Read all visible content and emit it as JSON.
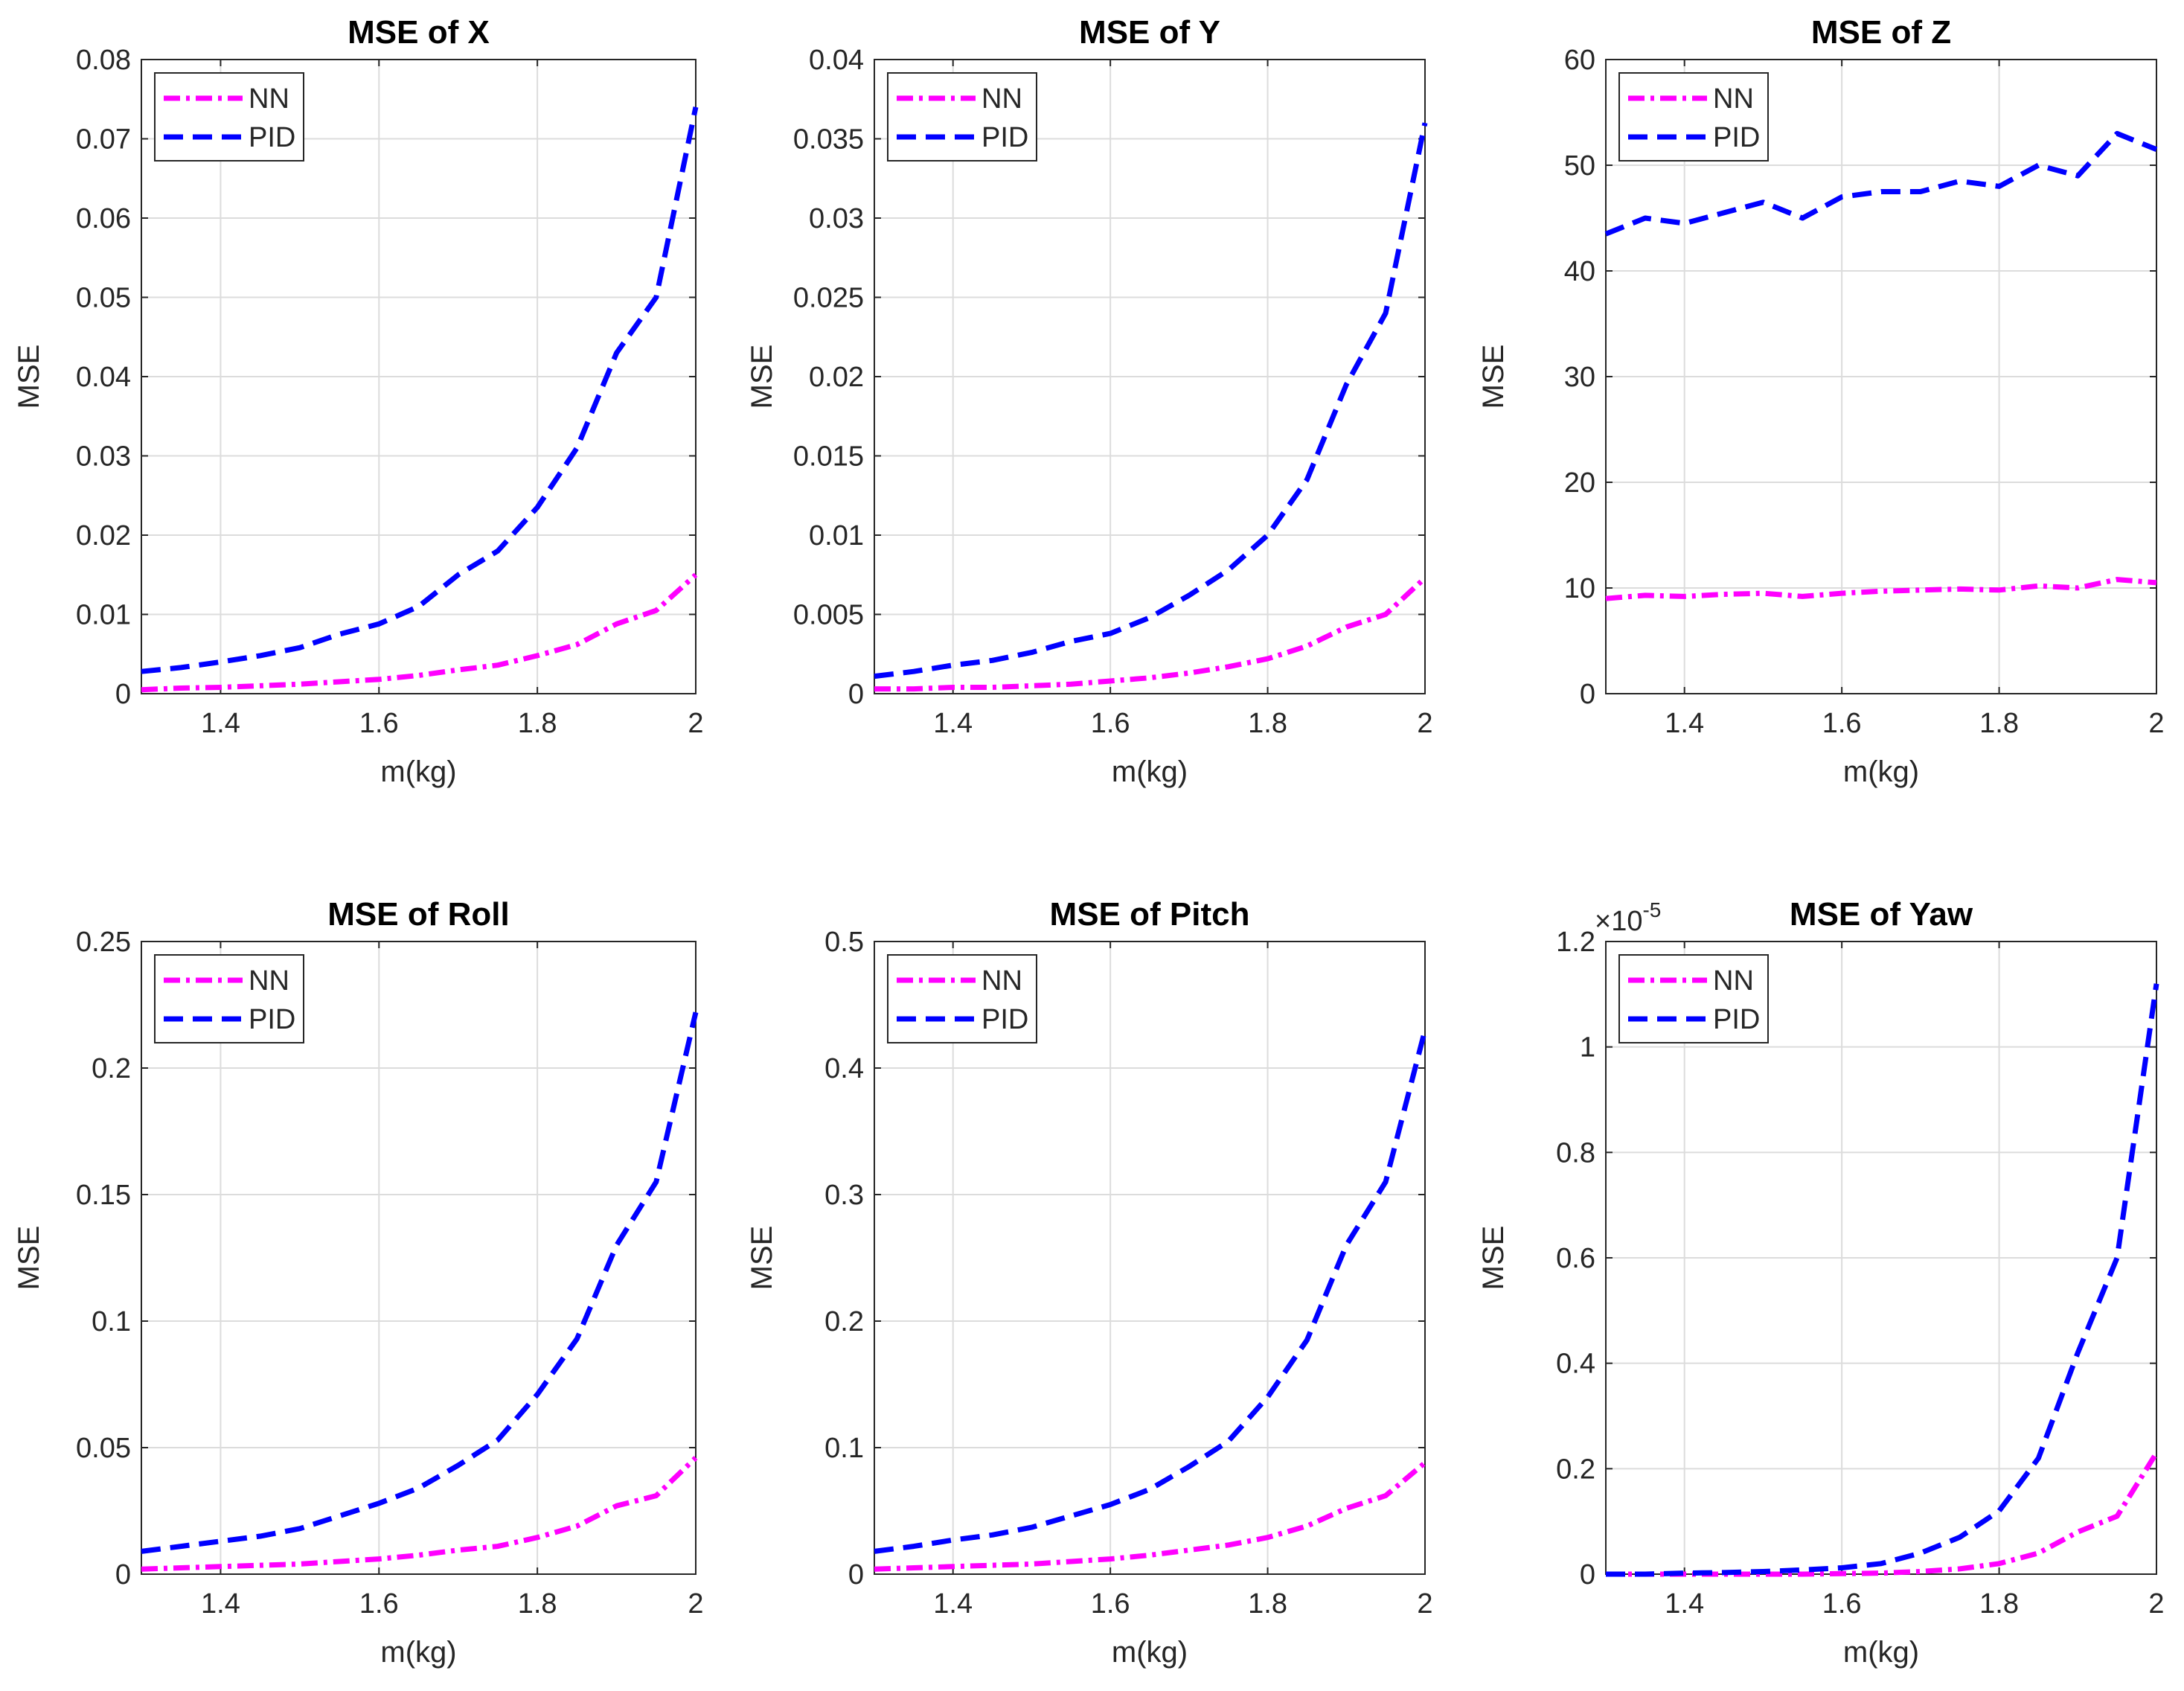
{
  "chart_data": [
    {
      "type": "line",
      "title": "MSE of X",
      "xlabel": "m(kg)",
      "ylabel": "MSE",
      "xlim": [
        1.3,
        2.0
      ],
      "ylim": [
        0,
        0.08
      ],
      "xticks": [
        "1.4",
        "1.6",
        "1.8",
        "2"
      ],
      "yticks": [
        "0",
        "0.01",
        "0.02",
        "0.03",
        "0.04",
        "0.05",
        "0.06",
        "0.07",
        "0.08"
      ],
      "exponent_label": "",
      "legend": [
        "NN",
        "PID"
      ],
      "x": [
        1.3,
        1.35,
        1.4,
        1.45,
        1.5,
        1.55,
        1.6,
        1.65,
        1.7,
        1.75,
        1.8,
        1.85,
        1.9,
        1.95,
        2.0
      ],
      "series": [
        {
          "name": "NN",
          "color": "#ff00ff",
          "values": [
            0.0005,
            0.0007,
            0.0008,
            0.001,
            0.0012,
            0.0015,
            0.0018,
            0.0023,
            0.003,
            0.0036,
            0.0048,
            0.0062,
            0.0088,
            0.0105,
            0.015
          ]
        },
        {
          "name": "PID",
          "color": "#0000ff",
          "values": [
            0.0028,
            0.0033,
            0.004,
            0.0048,
            0.0058,
            0.0075,
            0.0088,
            0.011,
            0.015,
            0.018,
            0.0235,
            0.031,
            0.043,
            0.05,
            0.074
          ]
        }
      ]
    },
    {
      "type": "line",
      "title": "MSE of Y",
      "xlabel": "m(kg)",
      "ylabel": "MSE",
      "xlim": [
        1.3,
        2.0
      ],
      "ylim": [
        0,
        0.04
      ],
      "xticks": [
        "1.4",
        "1.6",
        "1.8",
        "2"
      ],
      "yticks": [
        "0",
        "0.005",
        "0.01",
        "0.015",
        "0.02",
        "0.025",
        "0.03",
        "0.035",
        "0.04"
      ],
      "exponent_label": "",
      "legend": [
        "NN",
        "PID"
      ],
      "x": [
        1.3,
        1.35,
        1.4,
        1.45,
        1.5,
        1.55,
        1.6,
        1.65,
        1.7,
        1.75,
        1.8,
        1.85,
        1.9,
        1.95,
        2.0
      ],
      "series": [
        {
          "name": "NN",
          "color": "#ff00ff",
          "values": [
            0.0003,
            0.0003,
            0.0004,
            0.0004,
            0.0005,
            0.0006,
            0.0008,
            0.001,
            0.0013,
            0.0017,
            0.0022,
            0.003,
            0.0042,
            0.005,
            0.0073
          ]
        },
        {
          "name": "PID",
          "color": "#0000ff",
          "values": [
            0.0011,
            0.0014,
            0.0018,
            0.0021,
            0.0026,
            0.0033,
            0.0038,
            0.0048,
            0.0062,
            0.0078,
            0.01,
            0.0135,
            0.0195,
            0.024,
            0.036
          ]
        }
      ]
    },
    {
      "type": "line",
      "title": "MSE of Z",
      "xlabel": "m(kg)",
      "ylabel": "MSE",
      "xlim": [
        1.3,
        2.0
      ],
      "ylim": [
        0,
        60
      ],
      "xticks": [
        "1.4",
        "1.6",
        "1.8",
        "2"
      ],
      "yticks": [
        "0",
        "10",
        "20",
        "30",
        "40",
        "50",
        "60"
      ],
      "exponent_label": "",
      "legend": [
        "NN",
        "PID"
      ],
      "x": [
        1.3,
        1.35,
        1.4,
        1.45,
        1.5,
        1.55,
        1.6,
        1.65,
        1.7,
        1.75,
        1.8,
        1.85,
        1.9,
        1.95,
        2.0
      ],
      "series": [
        {
          "name": "NN",
          "color": "#ff00ff",
          "values": [
            9.0,
            9.3,
            9.2,
            9.4,
            9.5,
            9.2,
            9.5,
            9.7,
            9.8,
            9.9,
            9.8,
            10.2,
            10.0,
            10.8,
            10.5
          ]
        },
        {
          "name": "PID",
          "color": "#0000ff",
          "values": [
            43.5,
            45.0,
            44.5,
            45.5,
            46.5,
            45.0,
            47.0,
            47.5,
            47.5,
            48.5,
            48.0,
            50.0,
            49.0,
            53.0,
            51.5
          ]
        }
      ]
    },
    {
      "type": "line",
      "title": "MSE of Roll",
      "xlabel": "m(kg)",
      "ylabel": "MSE",
      "xlim": [
        1.3,
        2.0
      ],
      "ylim": [
        0,
        0.25
      ],
      "xticks": [
        "1.4",
        "1.6",
        "1.8",
        "2"
      ],
      "yticks": [
        "0",
        "0.05",
        "0.1",
        "0.15",
        "0.2",
        "0.25"
      ],
      "exponent_label": "",
      "legend": [
        "NN",
        "PID"
      ],
      "x": [
        1.3,
        1.35,
        1.4,
        1.45,
        1.5,
        1.55,
        1.6,
        1.65,
        1.7,
        1.75,
        1.8,
        1.85,
        1.9,
        1.95,
        2.0
      ],
      "series": [
        {
          "name": "NN",
          "color": "#ff00ff",
          "values": [
            0.002,
            0.0025,
            0.003,
            0.0035,
            0.004,
            0.005,
            0.006,
            0.0075,
            0.0095,
            0.011,
            0.0145,
            0.019,
            0.027,
            0.031,
            0.046
          ]
        },
        {
          "name": "PID",
          "color": "#0000ff",
          "values": [
            0.009,
            0.011,
            0.013,
            0.015,
            0.018,
            0.023,
            0.028,
            0.034,
            0.043,
            0.053,
            0.071,
            0.093,
            0.13,
            0.155,
            0.222
          ]
        }
      ]
    },
    {
      "type": "line",
      "title": "MSE of Pitch",
      "xlabel": "m(kg)",
      "ylabel": "MSE",
      "xlim": [
        1.3,
        2.0
      ],
      "ylim": [
        0,
        0.5
      ],
      "xticks": [
        "1.4",
        "1.6",
        "1.8",
        "2"
      ],
      "yticks": [
        "0",
        "0.1",
        "0.2",
        "0.3",
        "0.4",
        "0.5"
      ],
      "exponent_label": "",
      "legend": [
        "NN",
        "PID"
      ],
      "x": [
        1.3,
        1.35,
        1.4,
        1.45,
        1.5,
        1.55,
        1.6,
        1.65,
        1.7,
        1.75,
        1.8,
        1.85,
        1.9,
        1.95,
        2.0
      ],
      "series": [
        {
          "name": "NN",
          "color": "#ff00ff",
          "values": [
            0.004,
            0.005,
            0.006,
            0.007,
            0.008,
            0.01,
            0.012,
            0.015,
            0.019,
            0.023,
            0.029,
            0.038,
            0.052,
            0.062,
            0.088
          ]
        },
        {
          "name": "PID",
          "color": "#0000ff",
          "values": [
            0.018,
            0.022,
            0.027,
            0.031,
            0.037,
            0.046,
            0.055,
            0.067,
            0.085,
            0.105,
            0.14,
            0.185,
            0.26,
            0.31,
            0.43
          ]
        }
      ]
    },
    {
      "type": "line",
      "title": "MSE of Yaw",
      "xlabel": "m(kg)",
      "ylabel": "MSE",
      "xlim": [
        1.3,
        2.0
      ],
      "ylim": [
        0,
        1.2
      ],
      "xticks": [
        "1.4",
        "1.6",
        "1.8",
        "2"
      ],
      "yticks": [
        "0",
        "0.2",
        "0.4",
        "0.6",
        "0.8",
        "1",
        "1.2"
      ],
      "exponent_label": "×10",
      "exponent_power": "-5",
      "legend": [
        "NN",
        "PID"
      ],
      "x": [
        1.3,
        1.35,
        1.4,
        1.45,
        1.5,
        1.55,
        1.6,
        1.65,
        1.7,
        1.75,
        1.8,
        1.85,
        1.9,
        1.95,
        2.0
      ],
      "series": [
        {
          "name": "NN",
          "color": "#ff00ff",
          "values": [
            0.0,
            0.0,
            0.0,
            0.0,
            0.0,
            0.0,
            0.001,
            0.002,
            0.005,
            0.01,
            0.02,
            0.04,
            0.08,
            0.11,
            0.23
          ]
        },
        {
          "name": "PID",
          "color": "#0000ff",
          "values": [
            0.0,
            0.0,
            0.002,
            0.003,
            0.005,
            0.008,
            0.012,
            0.02,
            0.04,
            0.07,
            0.12,
            0.22,
            0.42,
            0.6,
            1.12
          ]
        }
      ]
    }
  ]
}
